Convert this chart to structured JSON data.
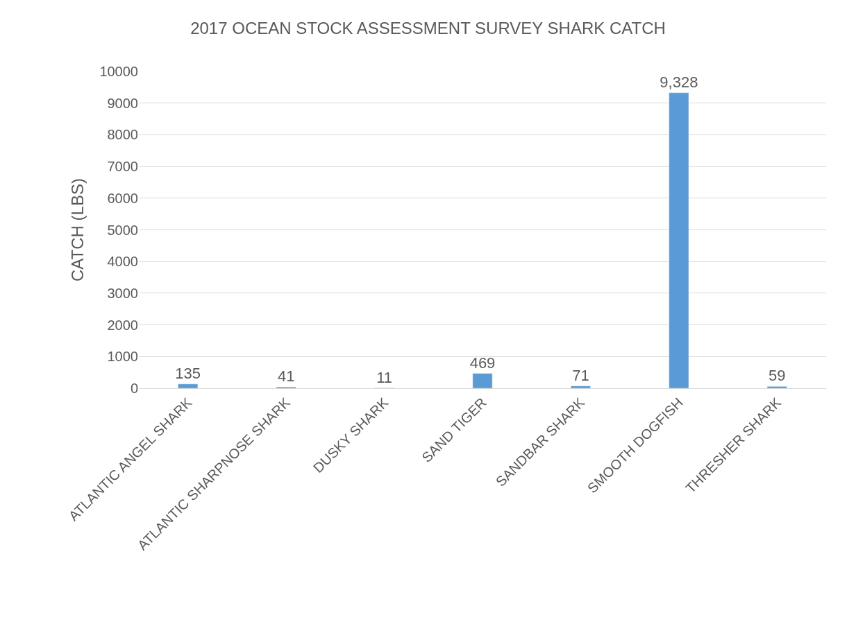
{
  "chart_data": {
    "type": "bar",
    "title": "2017 OCEAN STOCK ASSESSMENT SURVEY SHARK CATCH",
    "ylabel": "CATCH (LBS)",
    "categories": [
      "ATLANTIC ANGEL SHARK",
      "ATLANTIC SHARPNOSE SHARK",
      "DUSKY SHARK",
      "SAND TIGER",
      "SANDBAR SHARK",
      "SMOOTH DOGFISH",
      "THRESHER SHARK"
    ],
    "values": [
      135,
      41,
      11,
      469,
      71,
      9328,
      59
    ],
    "value_labels": [
      "135",
      "41",
      "11",
      "469",
      "71",
      "9,328",
      "59"
    ],
    "color": "#5b9bd5",
    "ylim": [
      0,
      10000
    ],
    "yticks": [
      0,
      1000,
      2000,
      3000,
      4000,
      5000,
      6000,
      7000,
      8000,
      9000,
      10000
    ],
    "grid": "y",
    "legend": false
  }
}
